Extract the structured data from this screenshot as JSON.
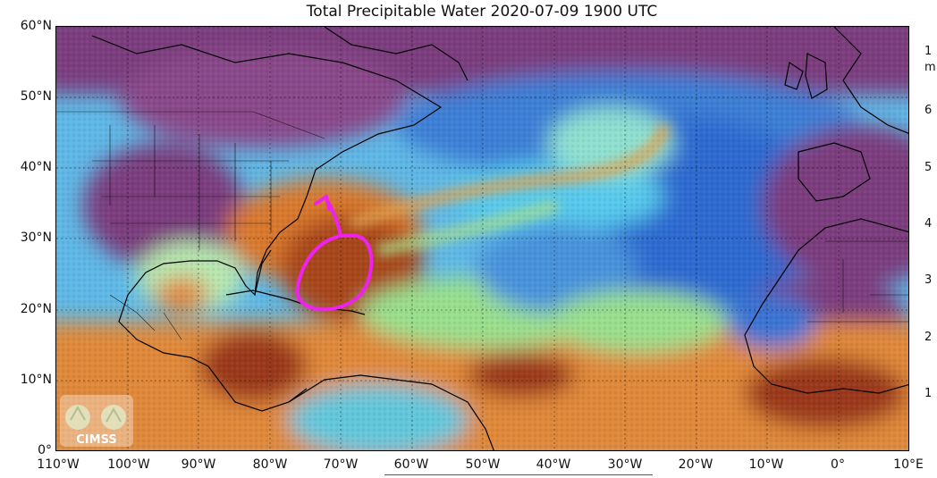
{
  "title": "Total Precipitable Water  2020-07-09 1900 UTC",
  "logo_text": "CIMSS",
  "lat_labels": [
    "60°N",
    "50°N",
    "40°N",
    "30°N",
    "20°N",
    "10°N",
    "0°"
  ],
  "lon_labels": [
    "110°W",
    "100°W",
    "90°W",
    "80°W",
    "70°W",
    "60°W",
    "50°W",
    "40°W",
    "30°W",
    "20°W",
    "10°W",
    "0°",
    "10°E"
  ],
  "colorbar_fragments": [
    "1",
    "m",
    "6",
    "5",
    "4",
    "3",
    "2",
    "1"
  ],
  "annotation": {
    "shape": "hand-drawn circle with arrow",
    "color": "#e020e0"
  },
  "colors": {
    "dry_purple": "#7a3a7c",
    "blue": "#3f82d8",
    "cyan": "#6ad6e8",
    "green": "#9fe08a",
    "orange": "#e08a3a",
    "brown": "#9a3a1c"
  }
}
